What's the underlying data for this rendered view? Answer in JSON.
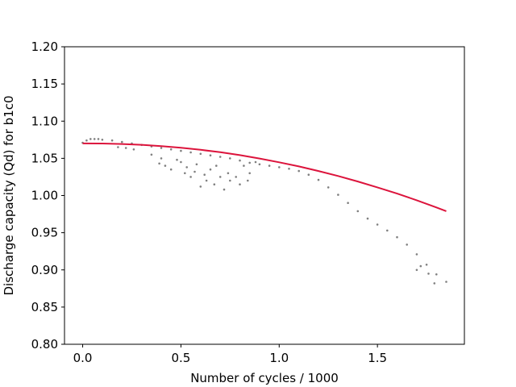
{
  "chart_data": {
    "type": "scatter",
    "title": "",
    "xlabel": "Number of cycles / 1000",
    "ylabel": "Discharge capacity (Qd) for b1c0",
    "xlim": [
      -0.0925,
      1.9425
    ],
    "ylim": [
      0.8,
      1.2
    ],
    "xticks": [
      "0.0",
      "0.5",
      "1.0",
      "1.5"
    ],
    "xtick_values": [
      0.0,
      0.5,
      1.0,
      1.5
    ],
    "yticks": [
      "0.80",
      "0.85",
      "0.90",
      "0.95",
      "1.00",
      "1.05",
      "1.10",
      "1.15",
      "1.20"
    ],
    "ytick_values": [
      0.8,
      0.85,
      0.9,
      0.95,
      1.0,
      1.05,
      1.1,
      1.15,
      1.2
    ],
    "grid": false,
    "series": [
      {
        "kind": "scatter",
        "color": "#808080",
        "x": [
          0.0,
          0.02,
          0.04,
          0.06,
          0.08,
          0.1,
          0.15,
          0.2,
          0.25,
          0.3,
          0.35,
          0.4,
          0.45,
          0.5,
          0.55,
          0.6,
          0.65,
          0.7,
          0.75,
          0.8,
          0.85,
          0.9,
          0.95,
          1.0,
          1.05,
          1.1,
          1.15,
          1.2,
          1.25,
          1.3,
          1.35,
          1.4,
          1.45,
          1.5,
          1.55,
          1.6,
          1.65,
          1.7,
          1.75,
          1.8,
          1.85
        ],
        "y": [
          1.071,
          1.074,
          1.076,
          1.076,
          1.076,
          1.075,
          1.074,
          1.072,
          1.07,
          1.068,
          1.066,
          1.064,
          1.062,
          1.06,
          1.058,
          1.056,
          1.054,
          1.052,
          1.05,
          1.047,
          1.044,
          1.042,
          1.04,
          1.038,
          1.036,
          1.033,
          1.028,
          1.021,
          1.011,
          1.001,
          0.99,
          0.979,
          0.969,
          0.961,
          0.953,
          0.944,
          0.934,
          0.921,
          0.907,
          0.894,
          0.884
        ]
      },
      {
        "kind": "scatter",
        "color": "#808080",
        "x": [
          0.18,
          0.22,
          0.26,
          0.35,
          0.39,
          0.4,
          0.42,
          0.45,
          0.48,
          0.5,
          0.52,
          0.53,
          0.55,
          0.57,
          0.58,
          0.6,
          0.62,
          0.63,
          0.65,
          0.67,
          0.68,
          0.7,
          0.72,
          0.74,
          0.75,
          0.78,
          0.8,
          0.82,
          0.84,
          0.85,
          0.88,
          1.7,
          1.72,
          1.76,
          1.79
        ],
        "y": [
          1.065,
          1.064,
          1.062,
          1.055,
          1.043,
          1.05,
          1.04,
          1.035,
          1.048,
          1.045,
          1.03,
          1.038,
          1.025,
          1.032,
          1.042,
          1.012,
          1.028,
          1.02,
          1.035,
          1.015,
          1.04,
          1.025,
          1.008,
          1.03,
          1.02,
          1.025,
          1.015,
          1.04,
          1.02,
          1.03,
          1.045,
          0.9,
          0.905,
          0.895,
          0.882
        ]
      },
      {
        "kind": "line",
        "color": "#dc143c",
        "x": [
          0.0,
          0.1,
          0.2,
          0.3,
          0.4,
          0.5,
          0.6,
          0.7,
          0.8,
          0.9,
          1.0,
          1.1,
          1.2,
          1.3,
          1.4,
          1.5,
          1.6,
          1.7,
          1.8,
          1.85
        ],
        "y": [
          1.07,
          1.0699,
          1.0693,
          1.0682,
          1.0665,
          1.0643,
          1.0615,
          1.0582,
          1.0543,
          1.0498,
          1.0447,
          1.0391,
          1.0329,
          1.0262,
          1.0189,
          1.011,
          1.0026,
          0.9936,
          0.984,
          0.979
        ]
      }
    ]
  }
}
